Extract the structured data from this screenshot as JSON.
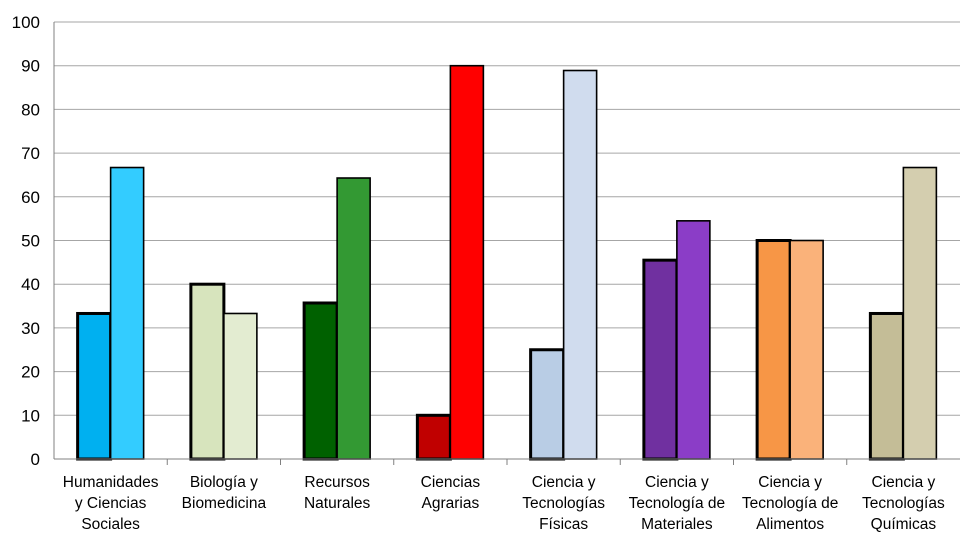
{
  "chart_data": {
    "type": "bar",
    "title": "",
    "xlabel": "",
    "ylabel": "",
    "ylim": [
      0,
      100
    ],
    "yticks": [
      0,
      10,
      20,
      30,
      40,
      50,
      60,
      70,
      80,
      90,
      100
    ],
    "grid": true,
    "legend": "none",
    "categories": [
      [
        "Humanidades",
        "y Ciencias",
        "Sociales"
      ],
      [
        "Biología y",
        "Biomedicina"
      ],
      [
        "Recursos",
        "Naturales"
      ],
      [
        "Ciencias",
        "Agrarias"
      ],
      [
        "Ciencia y",
        "Tecnologías",
        "Físicas"
      ],
      [
        "Ciencia y",
        "Tecnología de",
        "Materiales"
      ],
      [
        "Ciencia y",
        "Tecnología de",
        "Alimentos"
      ],
      [
        "Ciencia y",
        "Tecnologías",
        "Químicas"
      ]
    ],
    "series": [
      {
        "values": [
          33.3,
          40.0,
          35.7,
          10.0,
          25.0,
          45.5,
          50.0,
          33.3
        ],
        "colors": [
          "#00b0f0",
          "#d7e4bd",
          "#006100",
          "#c00000",
          "#b9cde5",
          "#7030a0",
          "#f79646",
          "#c4bd97"
        ],
        "border": "thick"
      },
      {
        "values": [
          66.7,
          33.3,
          64.3,
          90.0,
          88.9,
          54.5,
          50.0,
          66.7
        ],
        "colors": [
          "#33ccff",
          "#e3ecd1",
          "#339933",
          "#ff0000",
          "#d0dcee",
          "#8b3dc7",
          "#fab27a",
          "#d4ceaf"
        ],
        "border": "thin"
      }
    ]
  }
}
